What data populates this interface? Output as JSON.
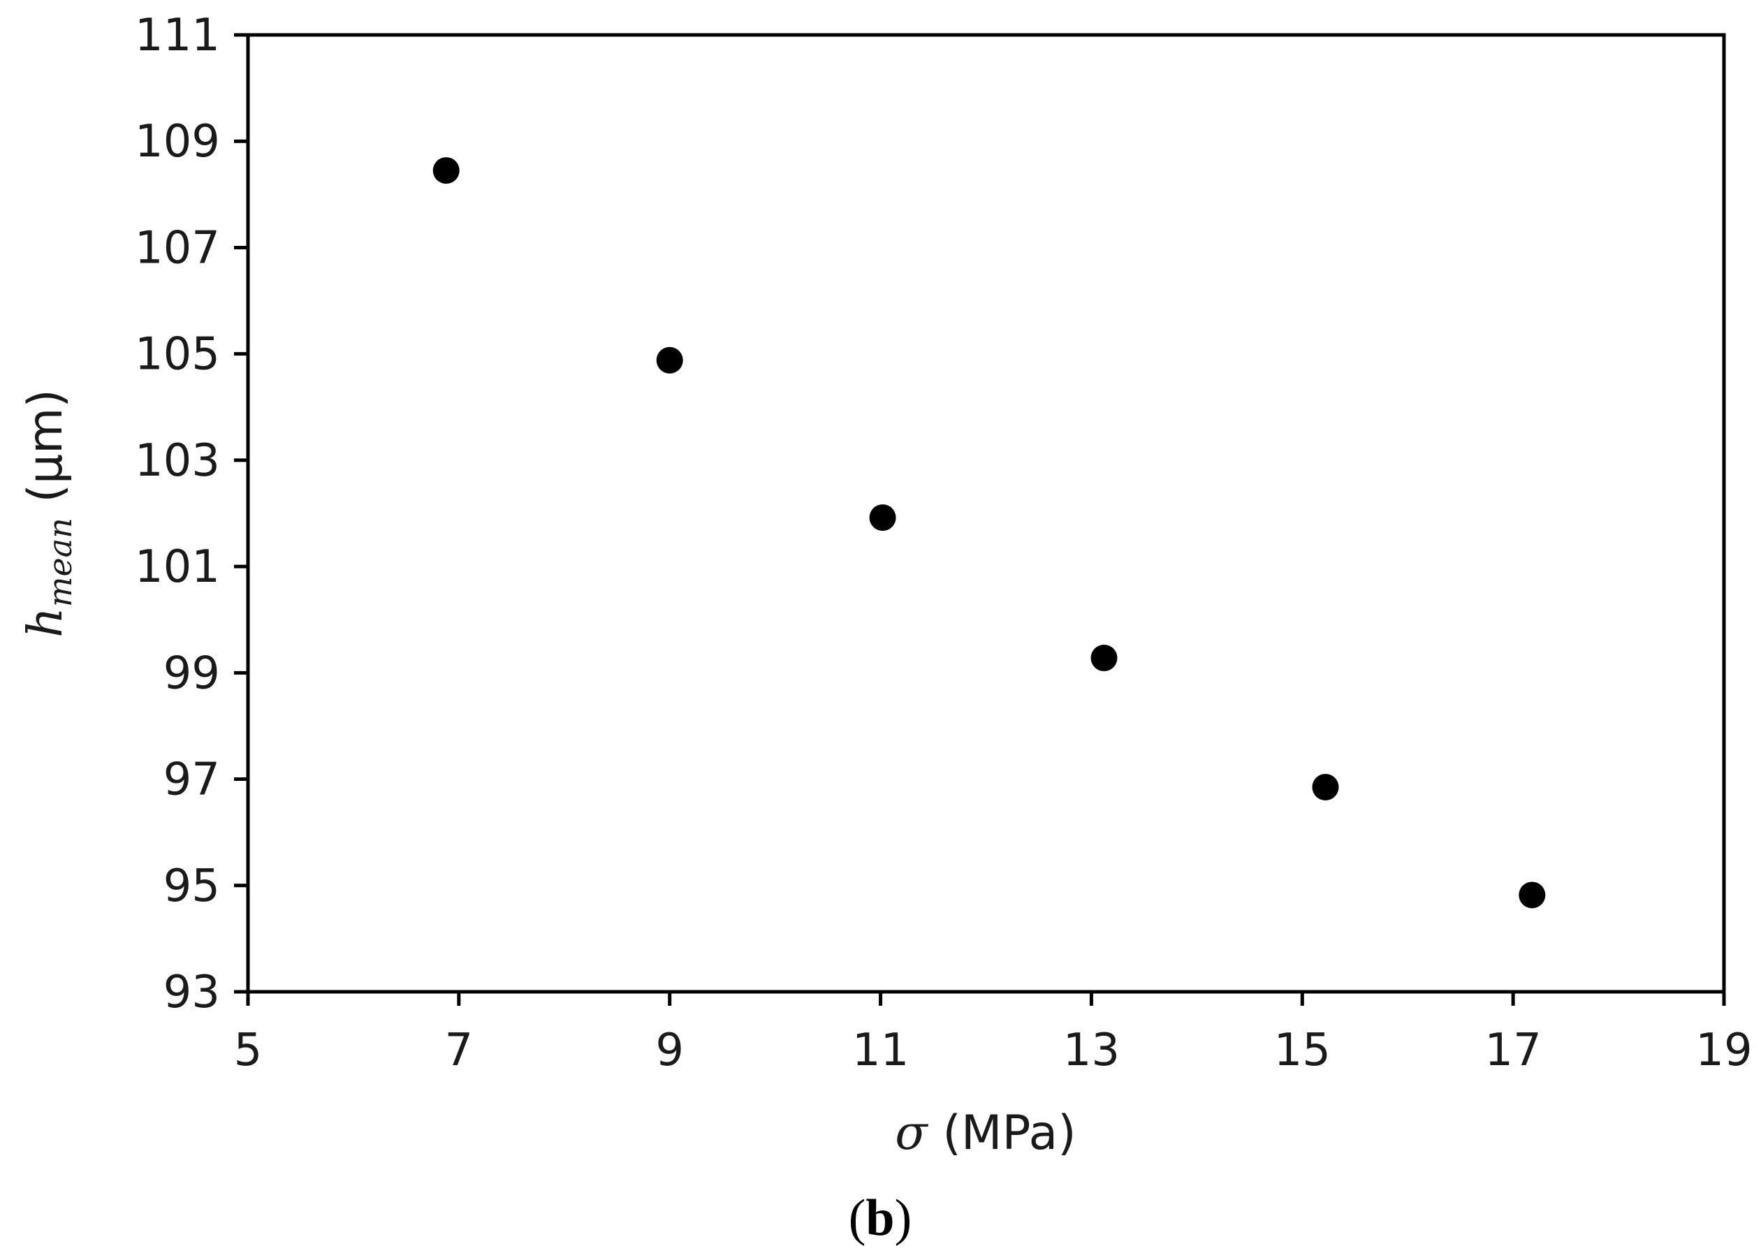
{
  "chart_data": {
    "type": "scatter",
    "x": [
      6.88,
      9.0,
      11.02,
      13.12,
      15.22,
      17.18
    ],
    "y": [
      108.45,
      104.88,
      101.92,
      99.28,
      96.85,
      94.82
    ],
    "xlim": [
      5,
      19
    ],
    "ylim": [
      93,
      111
    ],
    "xticks": [
      "5",
      "7",
      "9",
      "11",
      "13",
      "15",
      "17",
      "19"
    ],
    "yticks": [
      "93",
      "95",
      "97",
      "99",
      "101",
      "103",
      "105",
      "107",
      "109",
      "111"
    ],
    "xlabel": {
      "symbol": "σ",
      "unit": " (MPa)"
    },
    "ylabel": {
      "symbol": "h",
      "subscript": "mean",
      "unit": " (μm)"
    },
    "grid": false,
    "legend": "none",
    "marker_color": "#000000",
    "axis_color": "#000000"
  },
  "caption": {
    "open": "(",
    "letter": "b",
    "close": ")"
  }
}
